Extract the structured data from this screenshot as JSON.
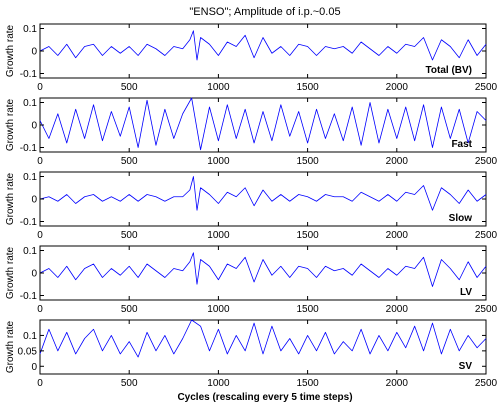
{
  "figure": {
    "title": "\"ENSO\"; Amplitude of i.p.~0.05",
    "xlabel": "Cycles (rescaling every 5 time steps)"
  },
  "chart_data": [
    {
      "type": "line",
      "label": "Total (BV)",
      "ylabel": "Growth rate",
      "xlim": [
        0,
        2500
      ],
      "ylim": [
        -0.12,
        0.12
      ],
      "xticks": [
        "0",
        "500",
        "1000",
        "1500",
        "2000",
        "2500"
      ],
      "yticks": [
        "0.1",
        "0",
        "-0.1"
      ],
      "ytick_values": [
        0.1,
        0,
        -0.1
      ],
      "color": "#0000ff",
      "series": [
        {
          "x": [
            0,
            50,
            100,
            150,
            200,
            250,
            300,
            350,
            400,
            450,
            500,
            550,
            600,
            650,
            700,
            750,
            800,
            840,
            860,
            880,
            900,
            950,
            1000,
            1050,
            1100,
            1150,
            1200,
            1250,
            1300,
            1350,
            1400,
            1450,
            1500,
            1550,
            1600,
            1650,
            1700,
            1750,
            1800,
            1850,
            1900,
            1950,
            2000,
            2050,
            2100,
            2150,
            2200,
            2250,
            2300,
            2350,
            2400,
            2450,
            2500
          ],
          "y": [
            0,
            0.02,
            -0.02,
            0.03,
            -0.03,
            0.02,
            0.03,
            -0.02,
            0.02,
            -0.01,
            0.02,
            -0.02,
            0.03,
            0.01,
            -0.02,
            0.02,
            0.01,
            0.05,
            0.09,
            -0.04,
            0.06,
            0.03,
            -0.02,
            0.04,
            0.02,
            0.07,
            -0.03,
            0.06,
            -0.01,
            0.02,
            -0.02,
            0.03,
            0.02,
            -0.02,
            0.02,
            0.01,
            0.02,
            -0.01,
            0.04,
            0.01,
            -0.02,
            0.02,
            -0.01,
            0.03,
            0.02,
            0.06,
            -0.04,
            0.05,
            0.02,
            -0.03,
            0.05,
            -0.02,
            0.03
          ]
        }
      ]
    },
    {
      "type": "line",
      "label": "Fast",
      "ylabel": "Growth rate",
      "xlim": [
        0,
        2500
      ],
      "ylim": [
        -0.12,
        0.12
      ],
      "xticks": [
        "0",
        "500",
        "1000",
        "1500",
        "2000",
        "2500"
      ],
      "yticks": [
        "0.1",
        "0",
        "-0.1"
      ],
      "ytick_values": [
        0.1,
        0,
        -0.1
      ],
      "color": "#0000ff",
      "series": [
        {
          "x": [
            0,
            50,
            100,
            150,
            200,
            250,
            300,
            350,
            400,
            450,
            500,
            550,
            600,
            650,
            700,
            750,
            800,
            850,
            900,
            950,
            1000,
            1050,
            1100,
            1150,
            1200,
            1250,
            1300,
            1350,
            1400,
            1450,
            1500,
            1550,
            1600,
            1650,
            1700,
            1750,
            1800,
            1850,
            1900,
            1950,
            2000,
            2050,
            2100,
            2150,
            2200,
            2250,
            2300,
            2350,
            2400,
            2450,
            2500
          ],
          "y": [
            0.02,
            -0.06,
            0.05,
            -0.08,
            0.07,
            -0.06,
            0.09,
            -0.07,
            0.06,
            -0.05,
            0.08,
            -0.1,
            0.11,
            -0.09,
            0.07,
            -0.06,
            0.05,
            0.12,
            -0.11,
            0.08,
            -0.07,
            0.09,
            -0.06,
            0.07,
            -0.08,
            0.06,
            -0.07,
            0.09,
            -0.05,
            0.06,
            -0.08,
            0.07,
            -0.06,
            0.05,
            -0.07,
            0.08,
            -0.09,
            0.1,
            -0.08,
            0.07,
            -0.06,
            0.08,
            -0.07,
            0.09,
            -0.1,
            0.08,
            -0.06,
            0.07,
            -0.08,
            0.06,
            0.02
          ]
        }
      ]
    },
    {
      "type": "line",
      "label": "Slow",
      "ylabel": "Growth rate",
      "xlim": [
        0,
        2500
      ],
      "ylim": [
        -0.12,
        0.12
      ],
      "xticks": [
        "0",
        "500",
        "1000",
        "1500",
        "2000",
        "2500"
      ],
      "yticks": [
        "0.1",
        "0",
        "-0.1"
      ],
      "ytick_values": [
        0.1,
        0,
        -0.1
      ],
      "color": "#0000ff",
      "series": [
        {
          "x": [
            0,
            50,
            100,
            150,
            200,
            250,
            300,
            350,
            400,
            450,
            500,
            550,
            600,
            650,
            700,
            750,
            800,
            840,
            860,
            880,
            900,
            950,
            1000,
            1050,
            1100,
            1150,
            1200,
            1250,
            1300,
            1350,
            1400,
            1450,
            1500,
            1550,
            1600,
            1650,
            1700,
            1750,
            1800,
            1850,
            1900,
            1950,
            2000,
            2050,
            2100,
            2150,
            2200,
            2250,
            2300,
            2350,
            2400,
            2450,
            2500
          ],
          "y": [
            0,
            0.01,
            -0.01,
            0.02,
            -0.02,
            0.01,
            0.02,
            -0.01,
            0.01,
            -0.01,
            0.02,
            -0.01,
            0.02,
            0.01,
            -0.01,
            0.01,
            0.01,
            0.04,
            0.1,
            -0.05,
            0.05,
            0.02,
            -0.02,
            0.03,
            0.01,
            0.05,
            -0.03,
            0.04,
            -0.01,
            0.02,
            -0.01,
            0.02,
            0.01,
            -0.01,
            0.02,
            0.01,
            0.01,
            -0.01,
            0.03,
            0.01,
            -0.01,
            0.02,
            -0.01,
            0.03,
            0.02,
            0.06,
            -0.05,
            0.05,
            0.02,
            -0.02,
            0.04,
            -0.01,
            0.02
          ]
        }
      ]
    },
    {
      "type": "line",
      "label": "LV",
      "ylabel": "Growth rate",
      "xlim": [
        0,
        2500
      ],
      "ylim": [
        -0.12,
        0.12
      ],
      "xticks": [
        "0",
        "500",
        "1000",
        "1500",
        "2000",
        "2500"
      ],
      "yticks": [
        "0.1",
        "0",
        "-0.1"
      ],
      "ytick_values": [
        0.1,
        0,
        -0.1
      ],
      "color": "#0000ff",
      "series": [
        {
          "x": [
            0,
            50,
            100,
            150,
            200,
            250,
            300,
            350,
            400,
            450,
            500,
            550,
            600,
            650,
            700,
            750,
            800,
            840,
            860,
            880,
            900,
            950,
            1000,
            1050,
            1100,
            1150,
            1200,
            1250,
            1300,
            1350,
            1400,
            1450,
            1500,
            1550,
            1600,
            1650,
            1700,
            1750,
            1800,
            1850,
            1900,
            1950,
            2000,
            2050,
            2100,
            2150,
            2200,
            2250,
            2300,
            2350,
            2400,
            2450,
            2500
          ],
          "y": [
            0,
            0.02,
            -0.02,
            0.03,
            -0.03,
            0.02,
            0.04,
            -0.02,
            0.02,
            -0.01,
            0.03,
            -0.02,
            0.04,
            0.01,
            -0.02,
            0.02,
            0.01,
            0.05,
            0.09,
            -0.05,
            0.06,
            0.03,
            -0.03,
            0.04,
            0.02,
            0.07,
            -0.04,
            0.06,
            -0.01,
            0.03,
            -0.02,
            0.03,
            0.02,
            -0.02,
            0.03,
            0.01,
            0.02,
            -0.01,
            0.04,
            0.01,
            -0.02,
            0.02,
            -0.01,
            0.03,
            0.02,
            0.07,
            -0.06,
            0.06,
            0.02,
            -0.03,
            0.05,
            -0.02,
            0.03
          ]
        }
      ]
    },
    {
      "type": "line",
      "label": "SV",
      "ylabel": "Growth rate",
      "xlim": [
        0,
        2500
      ],
      "ylim": [
        -0.025,
        0.15
      ],
      "xticks": [
        "0",
        "500",
        "1000",
        "1500",
        "2000",
        "2500"
      ],
      "yticks": [
        "0.1",
        "0.05",
        "0"
      ],
      "ytick_values": [
        0.1,
        0.05,
        0
      ],
      "color": "#0000ff",
      "series": [
        {
          "x": [
            0,
            50,
            100,
            150,
            200,
            250,
            300,
            350,
            400,
            450,
            500,
            550,
            600,
            650,
            700,
            750,
            800,
            850,
            900,
            950,
            1000,
            1050,
            1100,
            1150,
            1200,
            1250,
            1300,
            1350,
            1400,
            1450,
            1500,
            1550,
            1600,
            1650,
            1700,
            1750,
            1800,
            1850,
            1900,
            1950,
            2000,
            2050,
            2100,
            2150,
            2200,
            2250,
            2300,
            2350,
            2400,
            2450,
            2500
          ],
          "y": [
            0.04,
            0.12,
            0.05,
            0.11,
            0.04,
            0.09,
            0.12,
            0.05,
            0.1,
            0.04,
            0.08,
            0.03,
            0.11,
            0.05,
            0.1,
            0.04,
            0.09,
            0.15,
            0.13,
            0.05,
            0.12,
            0.04,
            0.1,
            0.05,
            0.14,
            0.04,
            0.13,
            0.05,
            0.09,
            0.04,
            0.1,
            0.05,
            0.11,
            0.04,
            0.08,
            0.05,
            0.12,
            0.04,
            0.1,
            0.05,
            0.11,
            0.06,
            0.13,
            0.05,
            0.14,
            0.04,
            0.12,
            0.05,
            0.1,
            0.06,
            0.09
          ]
        }
      ]
    }
  ]
}
